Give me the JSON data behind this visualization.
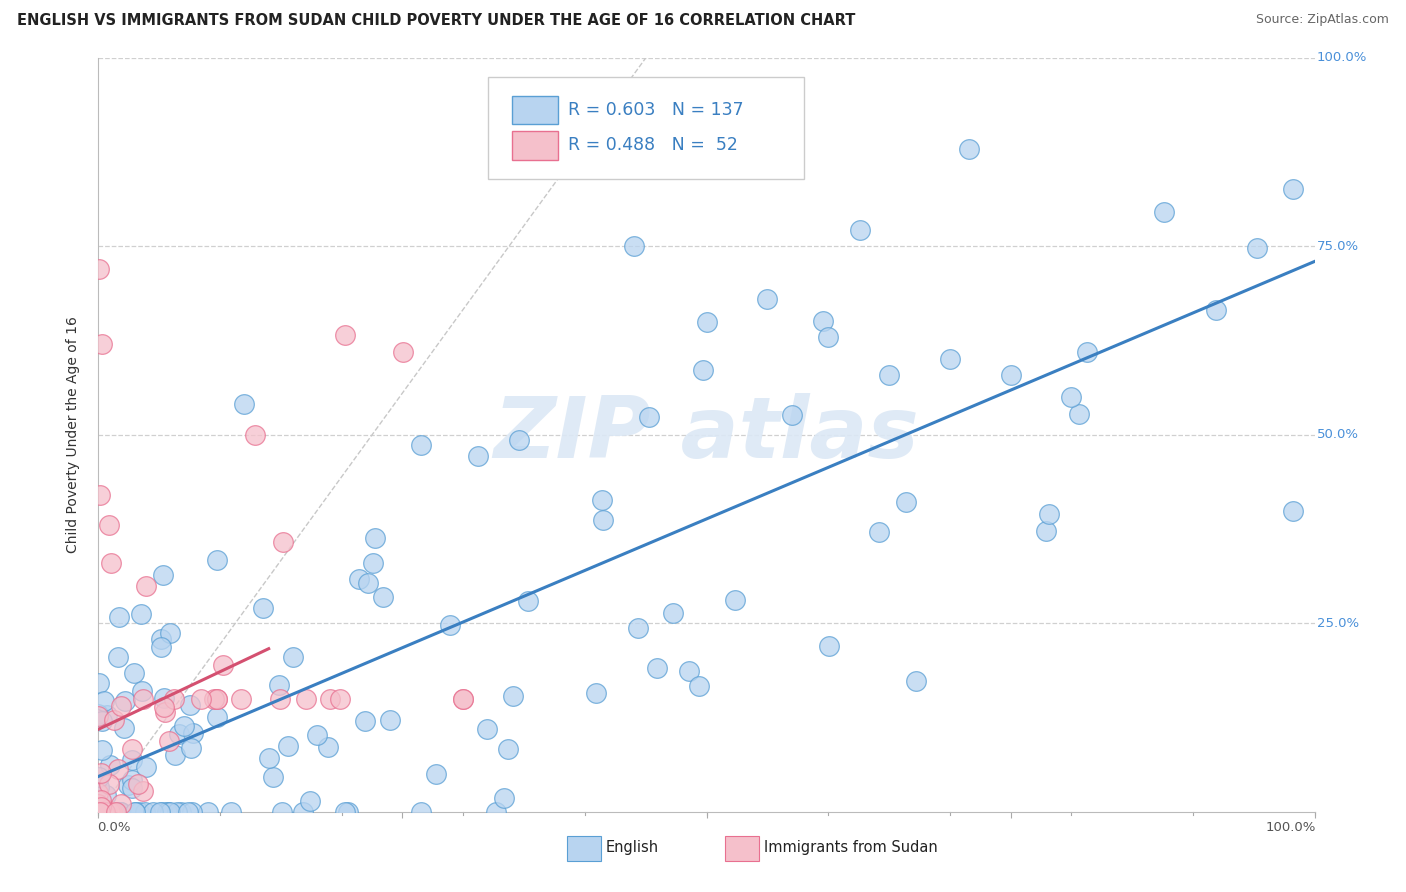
{
  "title": "ENGLISH VS IMMIGRANTS FROM SUDAN CHILD POVERTY UNDER THE AGE OF 16 CORRELATION CHART",
  "source": "Source: ZipAtlas.com",
  "ylabel": "Child Poverty Under the Age of 16",
  "legend_english": {
    "R": 0.603,
    "N": 137,
    "fill": "#b8d4f0",
    "edge": "#5a9fd4"
  },
  "legend_sudan": {
    "R": 0.488,
    "N": 52,
    "fill": "#f5c0cb",
    "edge": "#e87090"
  },
  "background_color": "#ffffff",
  "grid_color": "#d0d0d0",
  "watermark_color": "#dce8f5",
  "english_scatter_fill": "#b8d4f0",
  "english_scatter_edge": "#5a9fd4",
  "sudan_scatter_fill": "#f5c0cb",
  "sudan_scatter_edge": "#e87090",
  "english_line_color": "#3a7fc1",
  "sudan_line_color": "#d45070",
  "ref_line_color": "#c8c8c8",
  "yaxis_label_color": "#4a90d9",
  "title_color": "#222222",
  "source_color": "#666666",
  "bottom_label_color_eng": "#3a7fc1",
  "bottom_label_color_sud": "#cc4466"
}
